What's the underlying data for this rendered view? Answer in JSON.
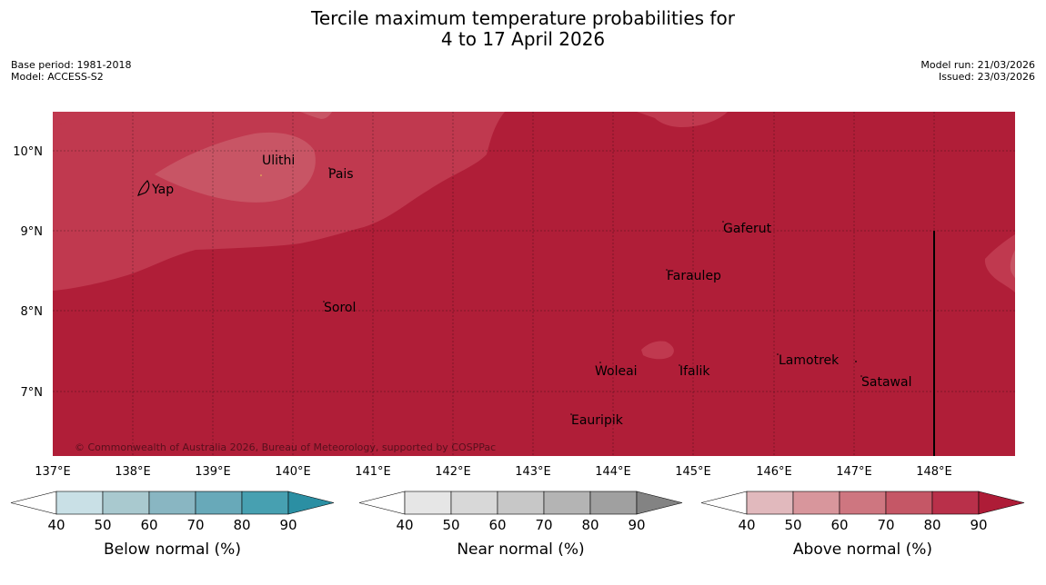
{
  "title": {
    "line1": "Tercile maximum temperature probabilities for",
    "line2": "4 to 17 April 2026"
  },
  "meta": {
    "base_period": "Base period: 1981-2018",
    "model": "Model: ACCESS-S2",
    "model_run": "Model run: 21/03/2026",
    "issued": "Issued: 23/03/2026"
  },
  "map": {
    "region": "Western Micronesia / Yap State",
    "lat_ticks": [
      "10°N",
      "9°N",
      "8°N",
      "7°N"
    ],
    "lon_ticks": [
      "137°E",
      "138°E",
      "139°E",
      "140°E",
      "141°E",
      "142°E",
      "143°E",
      "144°E",
      "145°E",
      "146°E",
      "147°E",
      "148°E"
    ],
    "places": [
      "Yap",
      "Ulithi",
      "Pais",
      "Gaferut",
      "Faraulep",
      "Sorol",
      "Lamotrek",
      "Woleai",
      "Ifalik",
      "Satawal",
      "Eauripik"
    ],
    "copyright": "© Commonwealth of Australia 2026, Bureau of Meteorology, supported by COSPPac",
    "colors": {
      "above_80_90": "#b01e38",
      "above_70_80": "#c0384f",
      "above_60_70": "#c85565"
    }
  },
  "colorbars": [
    {
      "name": "below",
      "label": "Below normal (%)",
      "ticks": [
        "40",
        "50",
        "60",
        "70",
        "80",
        "90"
      ],
      "colors": [
        "#c9e0e6",
        "#a9c9cf",
        "#89b6c2",
        "#68a9b9",
        "#47a0b1",
        "#2b8fa3"
      ]
    },
    {
      "name": "near",
      "label": "Near normal (%)",
      "ticks": [
        "40",
        "50",
        "60",
        "70",
        "80",
        "90"
      ],
      "colors": [
        "#e6e6e6",
        "#d8d8d8",
        "#c7c7c7",
        "#b4b4b4",
        "#a0a0a0",
        "#838383"
      ]
    },
    {
      "name": "above",
      "label": "Above normal (%)",
      "ticks": [
        "40",
        "50",
        "60",
        "70",
        "80",
        "90"
      ],
      "colors": [
        "#e1b9bd",
        "#d8969c",
        "#ce7680",
        "#c55766",
        "#b9304a",
        "#ae1c37"
      ]
    }
  ]
}
